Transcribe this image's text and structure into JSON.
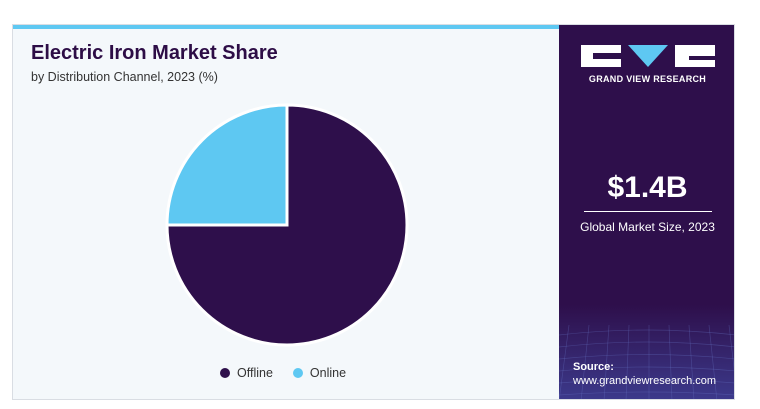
{
  "chart_data": {
    "type": "pie",
    "title": "Electric Iron Market Share",
    "subtitle": "by Distribution Channel, 2023 (%)",
    "categories": [
      "Offline",
      "Online"
    ],
    "values": [
      75,
      25
    ],
    "colors": [
      "#2e0f4b",
      "#5ec8f2"
    ],
    "legend_position": "bottom"
  },
  "sidebar": {
    "brand_name": "GRAND VIEW RESEARCH",
    "market_value": "$1.4B",
    "market_label": "Global Market Size, 2023",
    "source_label": "Source:",
    "source_url": "www.grandviewresearch.com"
  }
}
